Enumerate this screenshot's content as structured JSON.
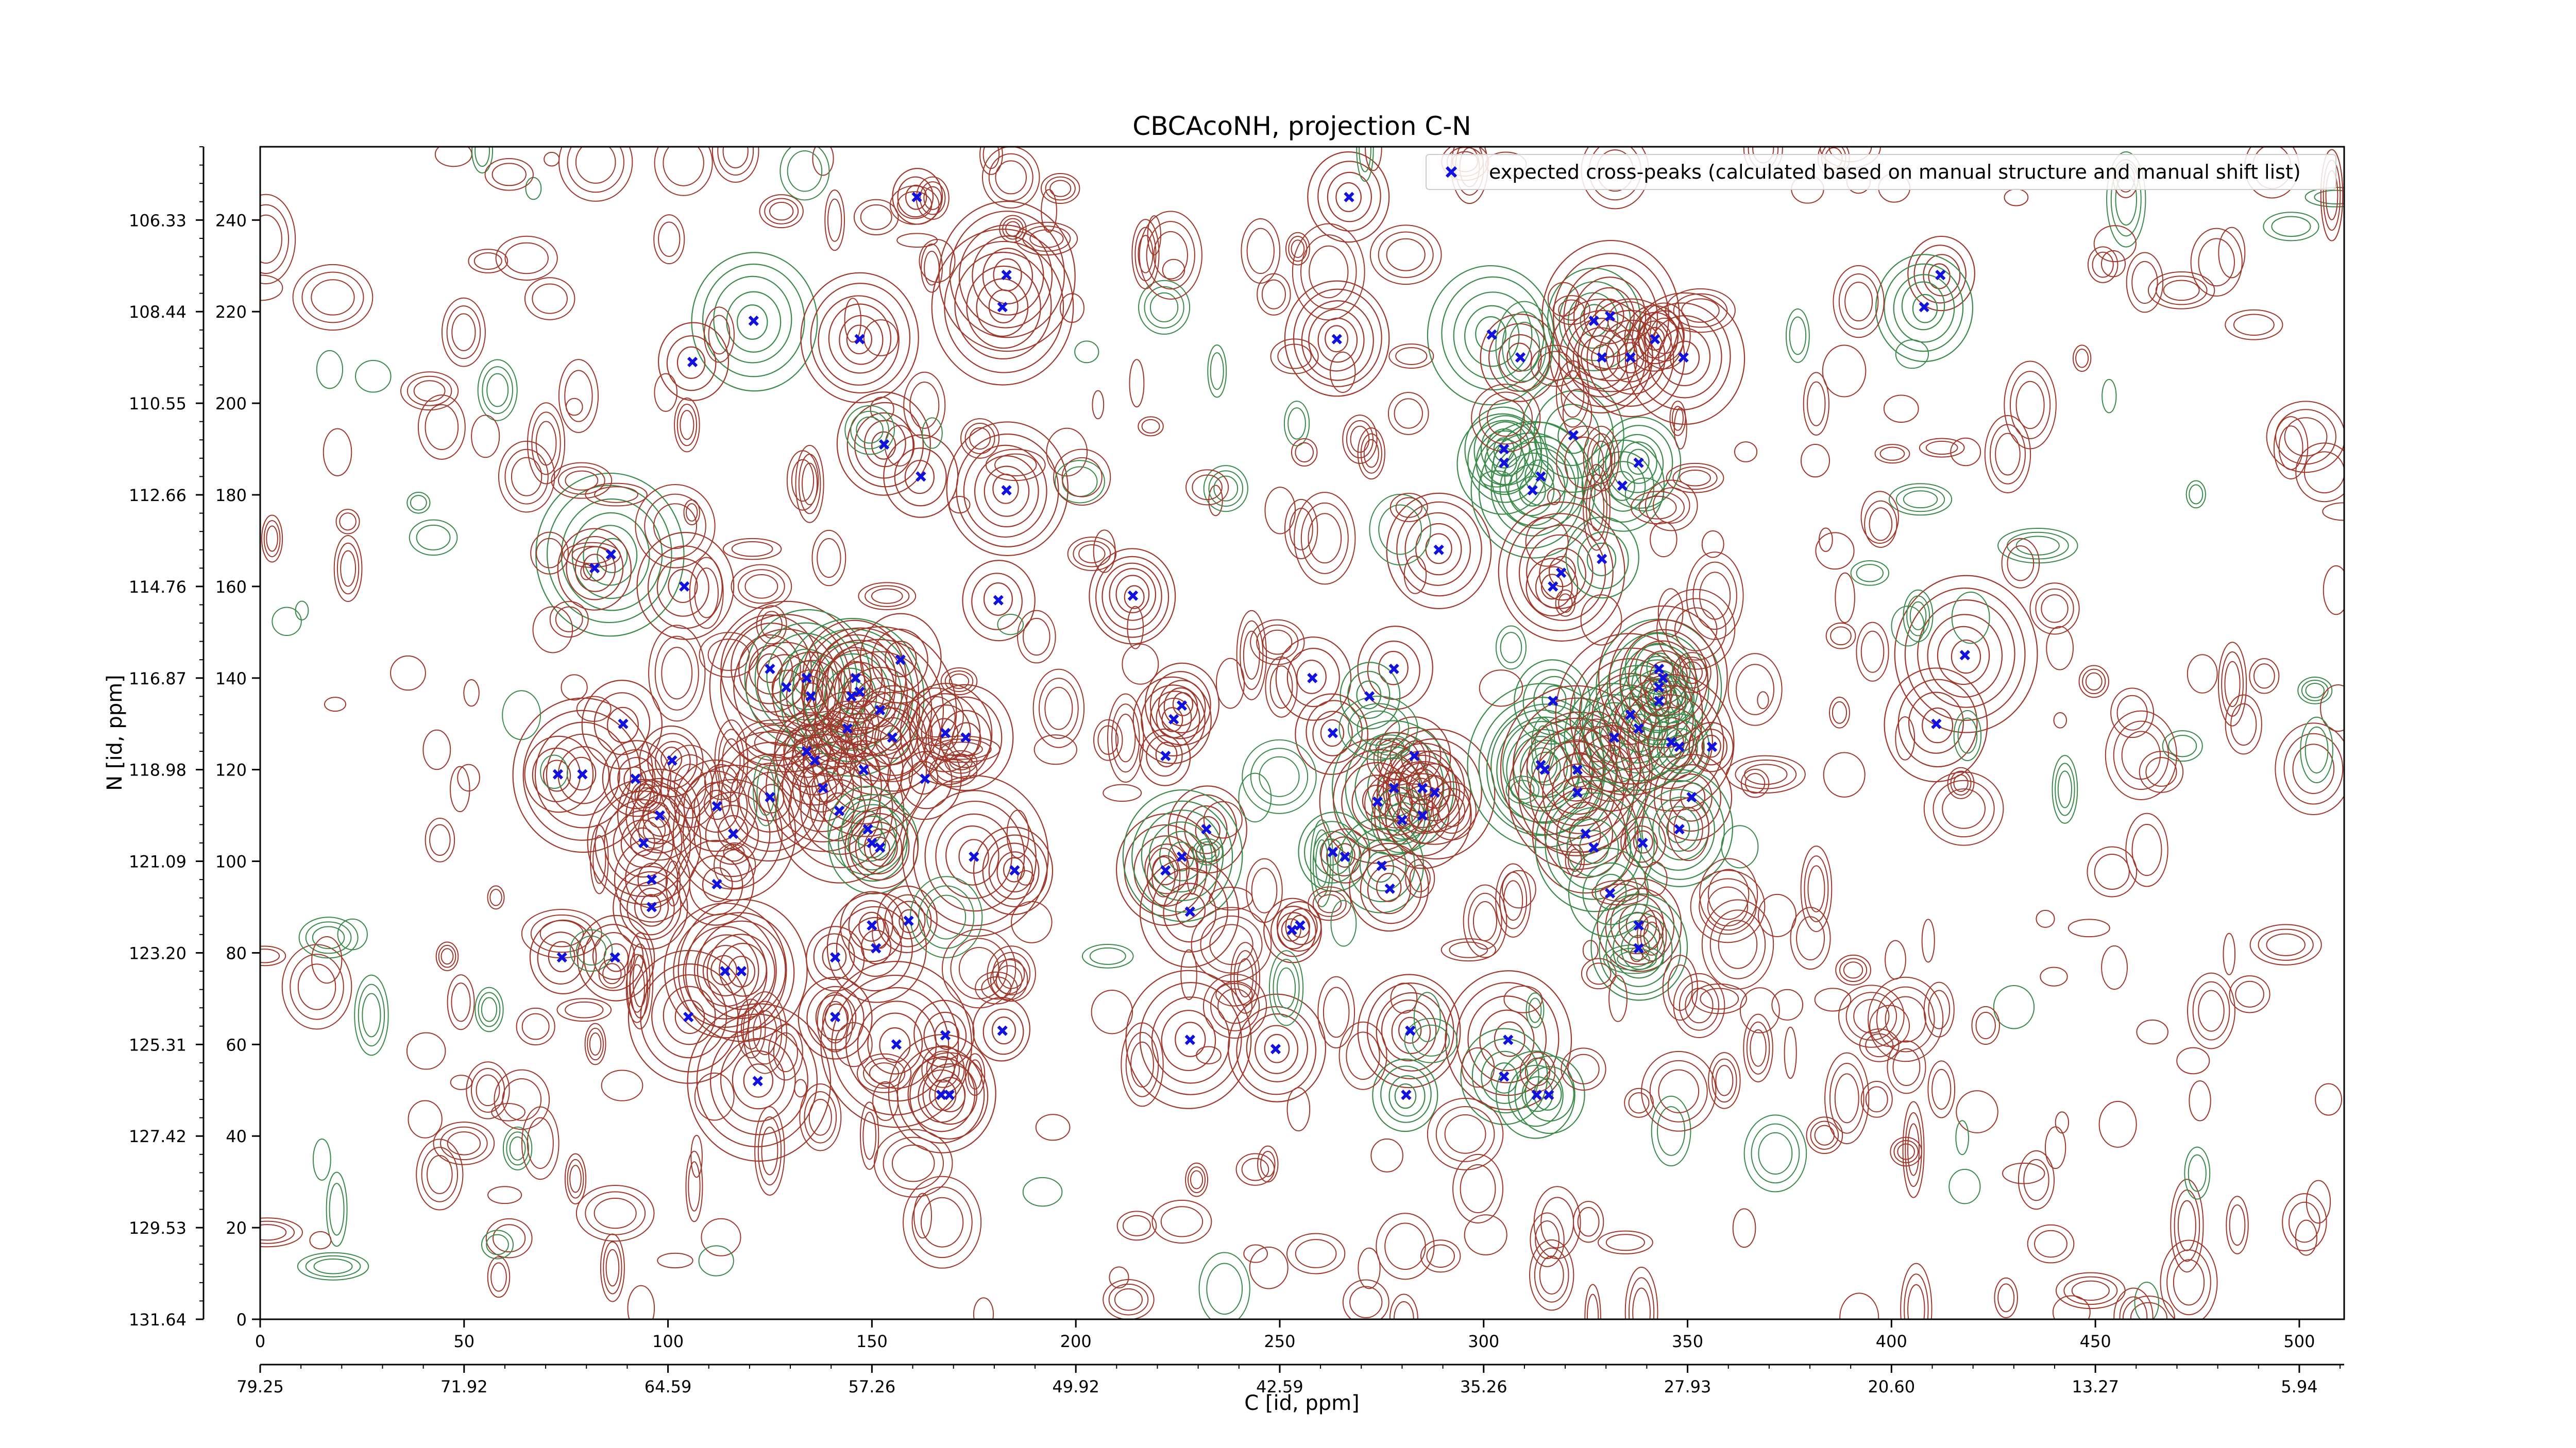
{
  "chart_data": {
    "type": "scatter",
    "title": "CBCAcoNH, projection C-N",
    "xlabel": "C [id, ppm]",
    "ylabel": "N [id, ppm]",
    "xlim": [
      0,
      511
    ],
    "ylim": [
      0,
      256
    ],
    "x_ticks_index": [
      "0",
      "50",
      "100",
      "150",
      "200",
      "250",
      "300",
      "350",
      "400",
      "450",
      "500"
    ],
    "x_ticks_ppm": [
      "79.25",
      "71.92",
      "64.59",
      "57.26",
      "49.92",
      "42.59",
      "35.26",
      "27.93",
      "20.60",
      "13.27",
      "5.94"
    ],
    "y_ticks_index": [
      "0",
      "20",
      "40",
      "60",
      "80",
      "100",
      "120",
      "140",
      "160",
      "180",
      "200",
      "220",
      "240"
    ],
    "y_ticks_ppm": [
      "131.64",
      "129.53",
      "127.42",
      "125.31",
      "123.20",
      "121.09",
      "118.98",
      "116.87",
      "114.76",
      "112.66",
      "110.55",
      "108.44",
      "106.33"
    ],
    "legend": {
      "position": "top-right",
      "entry": "expected cross-peaks (calculated based on manual structure and manual shift list)"
    },
    "colors": {
      "positive_contour": "#a0372b",
      "negative_contour": "#3a8a4a",
      "marker": "#1010e0"
    },
    "series": [
      {
        "name": "expected cross-peaks (calculated based on manual structure and manual shift list)",
        "marker": "x",
        "points": [
          [
            161,
            245
          ],
          [
            183,
            228
          ],
          [
            182,
            221
          ],
          [
            121,
            218
          ],
          [
            106,
            209
          ],
          [
            147,
            214
          ],
          [
            153,
            191
          ],
          [
            162,
            184
          ],
          [
            183,
            181
          ],
          [
            86,
            167
          ],
          [
            82,
            164
          ],
          [
            104,
            160
          ],
          [
            181,
            157
          ],
          [
            73,
            119
          ],
          [
            79,
            119
          ],
          [
            89,
            130
          ],
          [
            92,
            118
          ],
          [
            98,
            110
          ],
          [
            94,
            104
          ],
          [
            96,
            96
          ],
          [
            101,
            122
          ],
          [
            112,
            112
          ],
          [
            116,
            106
          ],
          [
            125,
            142
          ],
          [
            129,
            138
          ],
          [
            134,
            140
          ],
          [
            135,
            136
          ],
          [
            134,
            124
          ],
          [
            136,
            122
          ],
          [
            138,
            116
          ],
          [
            125,
            114
          ],
          [
            142,
            111
          ],
          [
            144,
            129
          ],
          [
            145,
            136
          ],
          [
            146,
            140
          ],
          [
            147,
            137
          ],
          [
            148,
            120
          ],
          [
            152,
            133
          ],
          [
            157,
            144
          ],
          [
            155,
            127
          ],
          [
            163,
            118
          ],
          [
            168,
            128
          ],
          [
            173,
            127
          ],
          [
            149,
            107
          ],
          [
            150,
            104
          ],
          [
            152,
            103
          ],
          [
            112,
            95
          ],
          [
            150,
            86
          ],
          [
            151,
            81
          ],
          [
            159,
            87
          ],
          [
            141,
            79
          ],
          [
            96,
            90
          ],
          [
            87,
            79
          ],
          [
            74,
            79
          ],
          [
            114,
            76
          ],
          [
            118,
            76
          ],
          [
            105,
            66
          ],
          [
            141,
            66
          ],
          [
            156,
            60
          ],
          [
            168,
            62
          ],
          [
            182,
            63
          ],
          [
            122,
            52
          ],
          [
            167,
            49
          ],
          [
            169,
            49
          ],
          [
            175,
            101
          ],
          [
            185,
            98
          ],
          [
            214,
            158
          ],
          [
            226,
            134
          ],
          [
            222,
            123
          ],
          [
            224,
            131
          ],
          [
            232,
            107
          ],
          [
            222,
            98
          ],
          [
            226,
            101
          ],
          [
            228,
            89
          ],
          [
            253,
            85
          ],
          [
            255,
            86
          ],
          [
            228,
            61
          ],
          [
            249,
            59
          ],
          [
            267,
            245
          ],
          [
            264,
            214
          ],
          [
            289,
            168
          ],
          [
            278,
            142
          ],
          [
            258,
            140
          ],
          [
            272,
            136
          ],
          [
            263,
            128
          ],
          [
            283,
            123
          ],
          [
            278,
            116
          ],
          [
            285,
            116
          ],
          [
            274,
            113
          ],
          [
            288,
            115
          ],
          [
            280,
            109
          ],
          [
            285,
            110
          ],
          [
            263,
            102
          ],
          [
            266,
            101
          ],
          [
            275,
            99
          ],
          [
            277,
            94
          ],
          [
            282,
            63
          ],
          [
            302,
            215
          ],
          [
            309,
            210
          ],
          [
            317,
            160
          ],
          [
            322,
            193
          ],
          [
            327,
            218
          ],
          [
            329,
            210
          ],
          [
            331,
            219
          ],
          [
            336,
            210
          ],
          [
            342,
            214
          ],
          [
            349,
            210
          ],
          [
            312,
            181
          ],
          [
            305,
            187
          ],
          [
            305,
            190
          ],
          [
            314,
            184
          ],
          [
            319,
            163
          ],
          [
            329,
            166
          ],
          [
            334,
            182
          ],
          [
            338,
            187
          ],
          [
            317,
            135
          ],
          [
            315,
            120
          ],
          [
            314,
            121
          ],
          [
            323,
            120
          ],
          [
            325,
            106
          ],
          [
            323,
            115
          ],
          [
            332,
            127
          ],
          [
            336,
            132
          ],
          [
            338,
            129
          ],
          [
            343,
            138
          ],
          [
            343,
            135
          ],
          [
            344,
            140
          ],
          [
            343,
            142
          ],
          [
            346,
            126
          ],
          [
            348,
            125
          ],
          [
            356,
            125
          ],
          [
            351,
            114
          ],
          [
            348,
            107
          ],
          [
            339,
            104
          ],
          [
            327,
            103
          ],
          [
            338,
            86
          ],
          [
            331,
            93
          ],
          [
            338,
            81
          ],
          [
            306,
            61
          ],
          [
            305,
            53
          ],
          [
            313,
            49
          ],
          [
            316,
            49
          ],
          [
            281,
            49
          ],
          [
            412,
            228
          ],
          [
            408,
            221
          ],
          [
            411,
            130
          ],
          [
            418,
            145
          ]
        ]
      }
    ]
  }
}
